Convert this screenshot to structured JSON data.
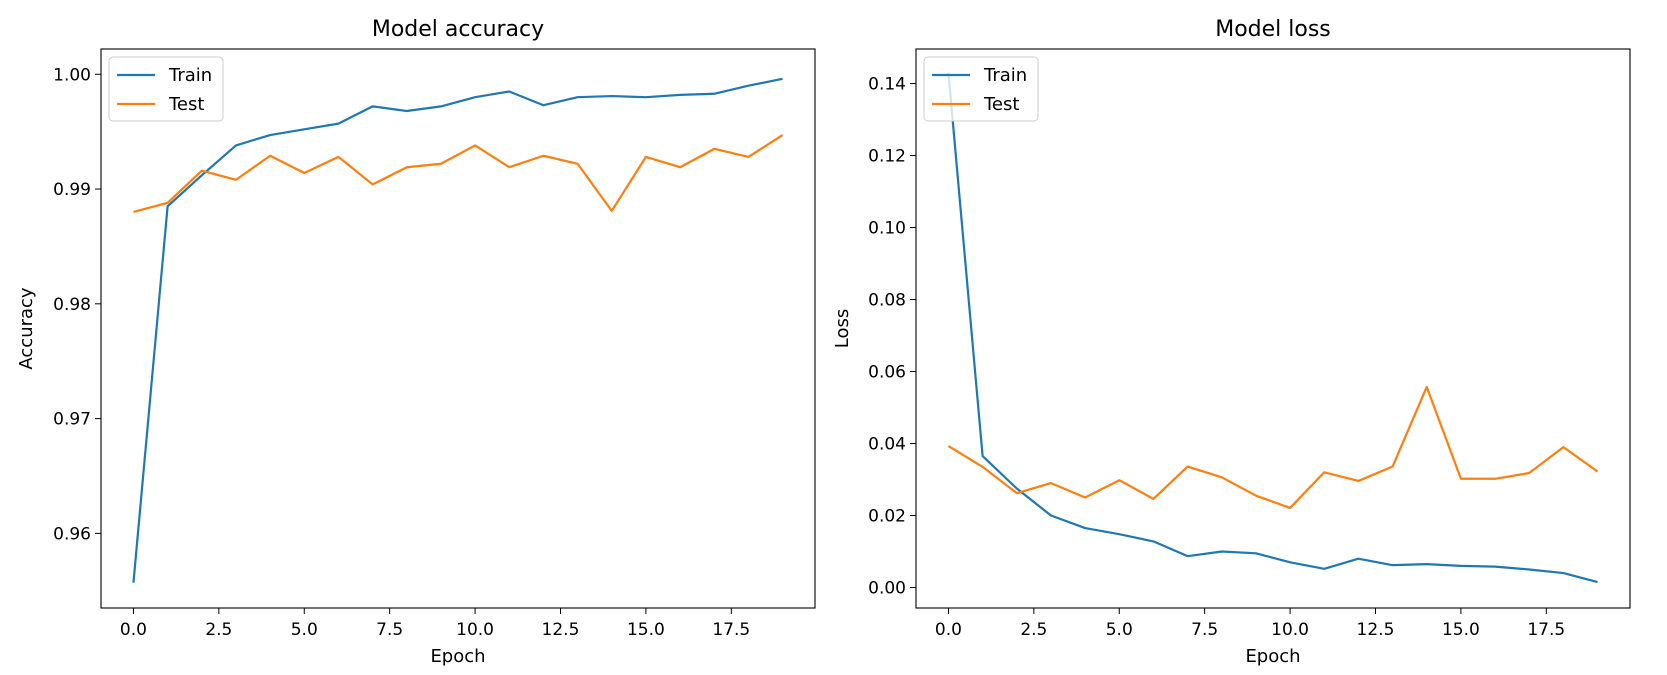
{
  "chart_data": [
    {
      "type": "line",
      "title": "Model accuracy",
      "xlabel": "Epoch",
      "ylabel": "Accuracy",
      "xlim": [
        -0.95,
        19.95
      ],
      "ylim": [
        0.9535,
        1.0022
      ],
      "xticks": [
        0,
        2.5,
        5,
        7.5,
        10,
        12.5,
        15,
        17.5
      ],
      "xtick_labels": [
        "0.0",
        "2.5",
        "5.0",
        "7.5",
        "10.0",
        "12.5",
        "15.0",
        "17.5"
      ],
      "yticks": [
        0.96,
        0.97,
        0.98,
        0.99,
        1.0
      ],
      "ytick_labels": [
        "0.96",
        "0.97",
        "0.98",
        "0.99",
        "1.00"
      ],
      "legend": "top-left",
      "grid": false,
      "x": [
        0,
        1,
        2,
        3,
        4,
        5,
        6,
        7,
        8,
        9,
        10,
        11,
        12,
        13,
        14,
        15,
        16,
        17,
        18,
        19
      ],
      "series": [
        {
          "name": "Train",
          "color": "#1f77b4",
          "values": [
            0.9557,
            0.9885,
            0.9912,
            0.9938,
            0.9947,
            0.9952,
            0.9957,
            0.9972,
            0.9968,
            0.9972,
            0.998,
            0.9985,
            0.9973,
            0.998,
            0.9981,
            0.998,
            0.9982,
            0.9983,
            0.999,
            0.9996
          ]
        },
        {
          "name": "Test",
          "color": "#ff7f0e",
          "values": [
            0.988,
            0.9888,
            0.9916,
            0.9908,
            0.9929,
            0.9914,
            0.9928,
            0.9904,
            0.9919,
            0.9922,
            0.9938,
            0.9919,
            0.9929,
            0.9922,
            0.9881,
            0.9928,
            0.9919,
            0.9935,
            0.9928,
            0.9947
          ]
        }
      ]
    },
    {
      "type": "line",
      "title": "Model loss",
      "xlabel": "Epoch",
      "ylabel": "Loss",
      "xlim": [
        -0.95,
        19.95
      ],
      "ylim": [
        -0.0057,
        0.1496
      ],
      "xticks": [
        0,
        2.5,
        5,
        7.5,
        10,
        12.5,
        15,
        17.5
      ],
      "xtick_labels": [
        "0.0",
        "2.5",
        "5.0",
        "7.5",
        "10.0",
        "12.5",
        "15.0",
        "17.5"
      ],
      "yticks": [
        0,
        0.02,
        0.04,
        0.06,
        0.08,
        0.1,
        0.12,
        0.14
      ],
      "ytick_labels": [
        "0.00",
        "0.02",
        "0.04",
        "0.06",
        "0.08",
        "0.10",
        "0.12",
        "0.14"
      ],
      "legend": "top-left",
      "grid": false,
      "x": [
        0,
        1,
        2,
        3,
        4,
        5,
        6,
        7,
        8,
        9,
        10,
        11,
        12,
        13,
        14,
        15,
        16,
        17,
        18,
        19
      ],
      "series": [
        {
          "name": "Train",
          "color": "#1f77b4",
          "values": [
            0.143,
            0.0365,
            0.0275,
            0.02,
            0.0165,
            0.0148,
            0.0128,
            0.0087,
            0.01,
            0.0095,
            0.007,
            0.0052,
            0.008,
            0.0062,
            0.0065,
            0.006,
            0.0058,
            0.005,
            0.004,
            0.0015
          ]
        },
        {
          "name": "Test",
          "color": "#ff7f0e",
          "values": [
            0.0393,
            0.0335,
            0.0262,
            0.029,
            0.025,
            0.0298,
            0.0246,
            0.0336,
            0.0306,
            0.0255,
            0.0221,
            0.032,
            0.0296,
            0.0336,
            0.0557,
            0.0302,
            0.0302,
            0.0318,
            0.039,
            0.0322
          ]
        }
      ]
    }
  ]
}
